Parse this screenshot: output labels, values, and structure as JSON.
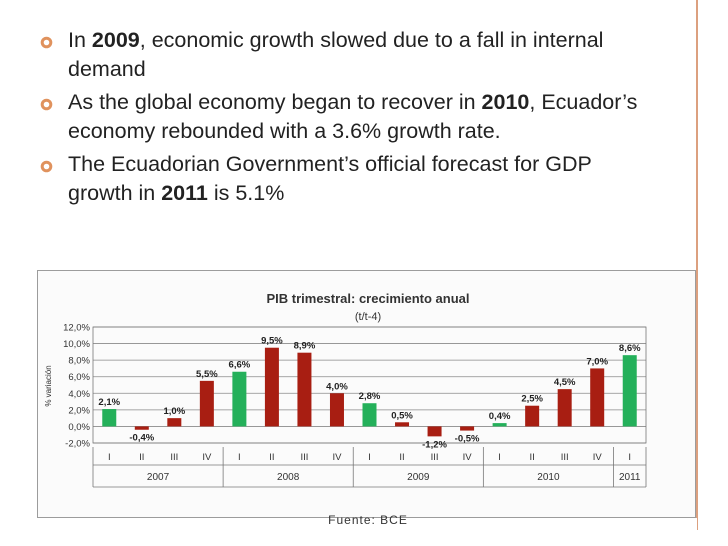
{
  "bullets": [
    {
      "pre": "In ",
      "bold": "2009",
      "post": ", economic growth slowed due to a fall in internal demand"
    },
    {
      "pre": "As the global economy began to recover in ",
      "bold": "2010",
      "post": ", Ecuador’s economy rebounded with a 3.6% growth rate."
    },
    {
      "pre": "The Ecuadorian Government’s official forecast for GDP growth in ",
      "bold": "2011",
      "post": " is 5.1%"
    }
  ],
  "colors": {
    "bullet": "#e0925d",
    "green": "#24b05a",
    "red": "#a81e12",
    "rule": "#dca07f"
  },
  "source": "Fuente: BCE",
  "chart_data": {
    "type": "bar",
    "title": "PIB trimestral: crecimiento anual",
    "subtitle": "(t/t-4)",
    "ylabel": "% variación",
    "ylim": [
      -2,
      12
    ],
    "yticks": [
      "-2,0%",
      "0,0%",
      "2,0%",
      "4,0%",
      "6,0%",
      "8,0%",
      "10,0%",
      "12,0%"
    ],
    "grid": true,
    "categories": [
      "I",
      "II",
      "III",
      "IV",
      "I",
      "II",
      "III",
      "IV",
      "I",
      "II",
      "III",
      "IV",
      "I",
      "II",
      "III",
      "IV",
      "I"
    ],
    "values": [
      2.1,
      -0.4,
      1.0,
      5.5,
      6.6,
      9.5,
      8.9,
      4.0,
      2.8,
      0.5,
      -1.2,
      -0.5,
      0.4,
      2.5,
      4.5,
      7.0,
      8.6
    ],
    "labels": [
      "2,1%",
      "-0,4%",
      "1,0%",
      "5,5%",
      "6,6%",
      "9,5%",
      "8,9%",
      "4,0%",
      "2,8%",
      "0,5%",
      "-1,2%",
      "-0,5%",
      "0,4%",
      "2,5%",
      "4,5%",
      "7,0%",
      "8,6%"
    ],
    "highlight": [
      true,
      false,
      false,
      false,
      true,
      false,
      false,
      false,
      true,
      false,
      false,
      false,
      true,
      false,
      false,
      false,
      true
    ],
    "years": [
      "2007",
      "2008",
      "2009",
      "2010",
      "2011"
    ]
  }
}
